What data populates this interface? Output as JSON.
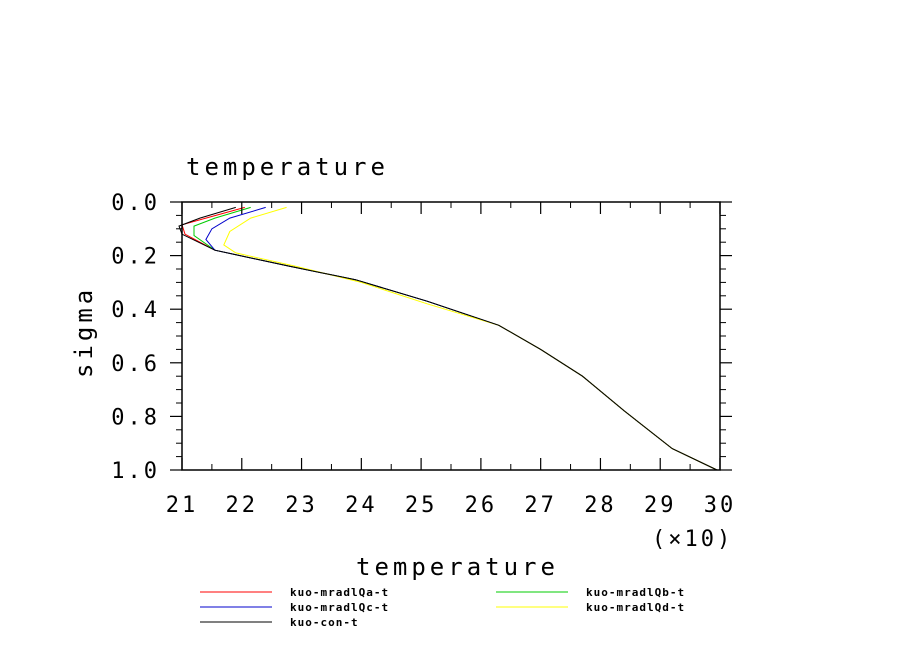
{
  "chart_data": {
    "type": "line",
    "title": "temperature",
    "xlabel": "temperature",
    "ylabel": "sigma",
    "x_multiplier": "(×10)",
    "xlim": [
      21,
      30
    ],
    "ylim": [
      0.0,
      1.0
    ],
    "y_inverted": true,
    "x_ticks": [
      21,
      22,
      23,
      24,
      25,
      26,
      27,
      28,
      29,
      30
    ],
    "y_ticks": [
      0.0,
      0.2,
      0.4,
      0.6,
      0.8,
      1.0
    ],
    "y_tick_labels": [
      "0.0",
      "0.2",
      "0.4",
      "0.6",
      "0.8",
      "1.0"
    ],
    "grid": false,
    "legend_position": "bottom",
    "series": [
      {
        "name": "kuo-mradlQa-t",
        "color": "#ff0000",
        "points": [
          [
            22.05,
            0.02
          ],
          [
            21.4,
            0.06
          ],
          [
            21.0,
            0.085
          ],
          [
            21.05,
            0.12
          ],
          [
            21.55,
            0.18
          ],
          [
            22.8,
            0.24
          ],
          [
            23.9,
            0.29
          ],
          [
            25.1,
            0.37
          ],
          [
            26.3,
            0.46
          ],
          [
            27.0,
            0.55
          ],
          [
            27.7,
            0.65
          ],
          [
            28.4,
            0.78
          ],
          [
            29.2,
            0.92
          ],
          [
            29.95,
            1.0
          ]
        ]
      },
      {
        "name": "kuo-mradlQb-t",
        "color": "#00cc00",
        "points": [
          [
            22.15,
            0.02
          ],
          [
            21.55,
            0.06
          ],
          [
            21.2,
            0.09
          ],
          [
            21.2,
            0.125
          ],
          [
            21.55,
            0.18
          ],
          [
            22.8,
            0.24
          ],
          [
            23.9,
            0.29
          ],
          [
            25.1,
            0.37
          ],
          [
            26.3,
            0.46
          ],
          [
            27.0,
            0.55
          ],
          [
            27.7,
            0.65
          ],
          [
            28.4,
            0.78
          ],
          [
            29.2,
            0.92
          ],
          [
            29.95,
            1.0
          ]
        ]
      },
      {
        "name": "kuo-mradlQc-t",
        "color": "#0000cc",
        "points": [
          [
            22.4,
            0.02
          ],
          [
            21.8,
            0.06
          ],
          [
            21.5,
            0.1
          ],
          [
            21.4,
            0.14
          ],
          [
            21.55,
            0.18
          ],
          [
            22.8,
            0.24
          ],
          [
            23.9,
            0.29
          ],
          [
            25.1,
            0.37
          ],
          [
            26.3,
            0.46
          ],
          [
            27.0,
            0.55
          ],
          [
            27.7,
            0.65
          ],
          [
            28.4,
            0.78
          ],
          [
            29.2,
            0.92
          ],
          [
            29.95,
            1.0
          ]
        ]
      },
      {
        "name": "kuo-mradlQd-t",
        "color": "#ffff00",
        "points": [
          [
            22.75,
            0.02
          ],
          [
            22.15,
            0.06
          ],
          [
            21.8,
            0.11
          ],
          [
            21.7,
            0.16
          ],
          [
            21.9,
            0.19
          ],
          [
            22.9,
            0.24
          ],
          [
            24.0,
            0.3
          ],
          [
            25.1,
            0.38
          ],
          [
            26.3,
            0.46
          ],
          [
            27.0,
            0.55
          ],
          [
            27.7,
            0.65
          ],
          [
            28.4,
            0.78
          ],
          [
            29.2,
            0.92
          ],
          [
            29.95,
            1.0
          ]
        ]
      },
      {
        "name": "kuo-con-t",
        "color": "#000000",
        "points": [
          [
            21.9,
            0.02
          ],
          [
            21.3,
            0.06
          ],
          [
            20.95,
            0.09
          ],
          [
            21.0,
            0.12
          ],
          [
            21.55,
            0.18
          ],
          [
            22.8,
            0.24
          ],
          [
            23.9,
            0.29
          ],
          [
            25.1,
            0.37
          ],
          [
            26.3,
            0.46
          ],
          [
            27.0,
            0.55
          ],
          [
            27.7,
            0.65
          ],
          [
            28.4,
            0.78
          ],
          [
            29.2,
            0.92
          ],
          [
            29.95,
            1.0
          ]
        ]
      }
    ]
  }
}
